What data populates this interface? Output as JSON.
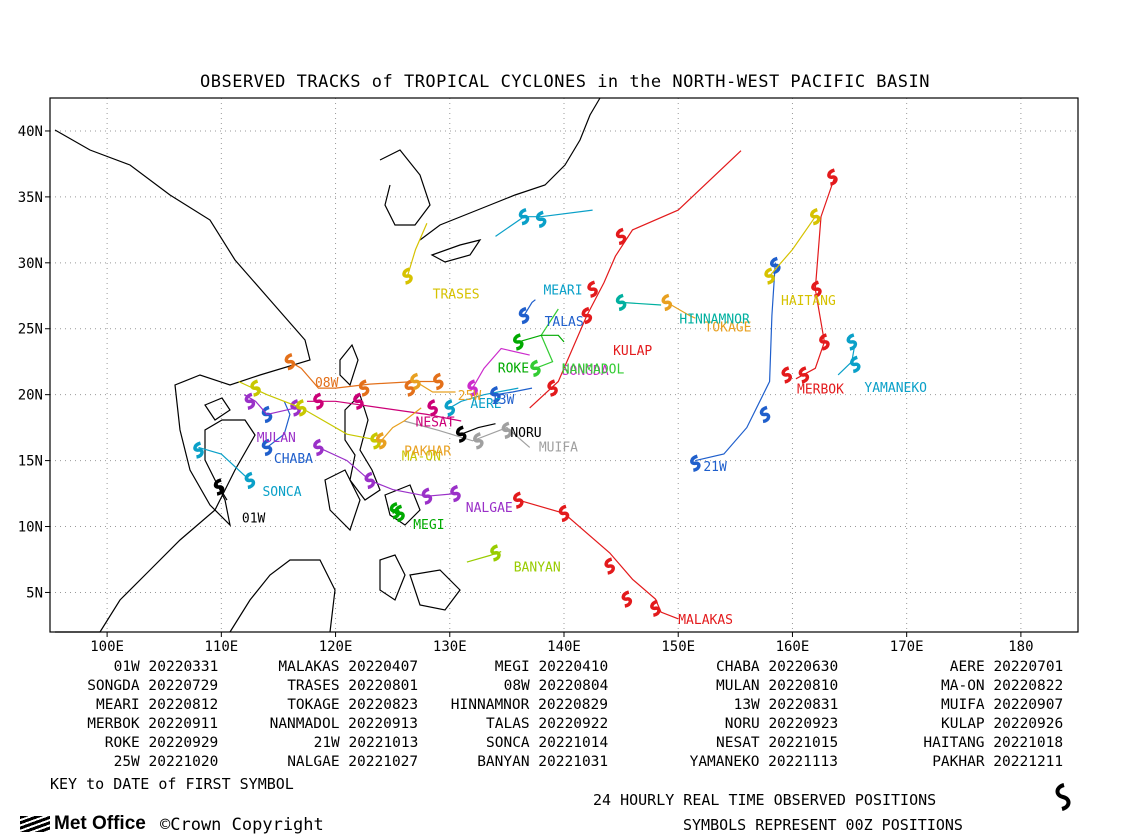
{
  "title": "OBSERVED TRACKS of TROPICAL CYCLONES in the NORTH-WEST PACIFIC BASIN",
  "map": {
    "lon_range": [
      95,
      185
    ],
    "lat_range": [
      2,
      42.5
    ],
    "x_ticks": [
      "100E",
      "110E",
      "120E",
      "130E",
      "140E",
      "150E",
      "160E",
      "170E",
      "180"
    ],
    "x_tick_values": [
      100,
      110,
      120,
      130,
      140,
      150,
      160,
      170,
      180
    ],
    "y_ticks": [
      "5N",
      "10N",
      "15N",
      "20N",
      "25N",
      "30N",
      "35N",
      "40N"
    ],
    "y_tick_values": [
      5,
      10,
      15,
      20,
      25,
      30,
      35,
      40
    ],
    "grid": "dotted"
  },
  "storms": [
    {
      "name": "01W",
      "color": "#000000",
      "track": [
        [
          109.8,
          13
        ],
        [
          110.5,
          12
        ]
      ],
      "label": [
        111.8,
        10.3
      ]
    },
    {
      "name": "MALAKAS",
      "color": "#e31a1c",
      "track": [
        [
          136,
          12
        ],
        [
          140,
          11
        ],
        [
          144,
          8
        ],
        [
          146,
          6
        ],
        [
          148,
          4.5
        ],
        [
          148.5,
          3.5
        ],
        [
          150,
          3
        ]
      ],
      "symbols": [
        [
          136,
          12
        ],
        [
          140,
          11
        ],
        [
          144,
          7
        ],
        [
          145.5,
          4.5
        ],
        [
          148,
          3.8
        ]
      ],
      "label": [
        150,
        2.6
      ]
    },
    {
      "name": "MEGI",
      "color": "#00aa00",
      "track": [
        [
          125.5,
          11.2
        ],
        [
          125,
          11
        ],
        [
          125.5,
          11.5
        ]
      ],
      "symbols": [
        [
          125.2,
          11.2
        ],
        [
          125.6,
          11
        ]
      ],
      "label": [
        126.8,
        9.8
      ]
    },
    {
      "name": "CHABA",
      "color": "#1f5fcc",
      "track": [
        [
          114,
          16
        ],
        [
          115.5,
          17
        ],
        [
          116,
          18.5
        ],
        [
          115.5,
          19.5
        ]
      ],
      "symbols": [
        [
          114,
          16
        ],
        [
          114,
          18.5
        ]
      ],
      "label": [
        114.6,
        14.8
      ]
    },
    {
      "name": "AERE",
      "color": "#0aa0c8",
      "track": [
        [
          130,
          19
        ],
        [
          131,
          19.5
        ],
        [
          133,
          20
        ],
        [
          136,
          20.5
        ]
      ],
      "label": [
        131.8,
        19
      ]
    },
    {
      "name": "SONGDA",
      "color": "#cc2bcc",
      "track": [
        [
          132,
          20.5
        ],
        [
          133,
          22
        ],
        [
          134.5,
          23.5
        ],
        [
          137,
          23
        ]
      ],
      "label": [
        139.8,
        21.5
      ]
    },
    {
      "name": "TRASES",
      "color": "#d6c200",
      "track": [
        [
          126.3,
          29
        ],
        [
          127,
          31
        ],
        [
          128,
          33
        ]
      ],
      "label": [
        128.5,
        27.3
      ]
    },
    {
      "name": "08W",
      "color": "#e3701a",
      "track": [
        [
          116,
          22.5
        ],
        [
          117,
          22
        ],
        [
          118.5,
          20.5
        ],
        [
          120,
          20.5
        ],
        [
          123,
          20.8
        ],
        [
          127,
          21
        ],
        [
          129,
          21
        ]
      ],
      "symbols": [
        [
          116,
          22.5
        ],
        [
          122.5,
          20.5
        ],
        [
          126.5,
          20.5
        ],
        [
          129,
          21
        ]
      ],
      "label": [
        118.2,
        20.6
      ]
    },
    {
      "name": "MULAN",
      "color": "#9a30c8",
      "track": [
        [
          112,
          20
        ],
        [
          113,
          19.5
        ],
        [
          114,
          18.5
        ],
        [
          116.5,
          19
        ]
      ],
      "symbols": [
        [
          112.5,
          19.5
        ],
        [
          116.5,
          19
        ]
      ],
      "label": [
        113.1,
        16.4
      ]
    },
    {
      "name": "MA-ON",
      "color": "#c8c800",
      "track": [
        [
          111.5,
          21
        ],
        [
          114,
          20
        ],
        [
          117,
          19
        ],
        [
          121,
          17
        ],
        [
          124,
          16.5
        ]
      ],
      "symbols": [
        [
          113,
          20.5
        ],
        [
          117,
          19
        ],
        [
          123.5,
          16.5
        ]
      ],
      "label": [
        125.8,
        15
      ]
    },
    {
      "name": "MEARI",
      "color": "#0aa0c8",
      "track": [
        [
          134,
          32
        ],
        [
          136.5,
          33.5
        ],
        [
          138,
          33.5
        ],
        [
          142.5,
          34
        ]
      ],
      "symbols": [
        [
          136.5,
          33.5
        ],
        [
          138,
          33.3
        ]
      ],
      "label": [
        138.2,
        27.6
      ]
    },
    {
      "name": "TOKAGE",
      "color": "#e8a020",
      "track": [
        [
          149,
          27
        ],
        [
          151,
          26
        ],
        [
          151.5,
          25.8
        ]
      ],
      "label": [
        152.3,
        24.8
      ]
    },
    {
      "name": "HINNAMNOR",
      "color": "#00b0a0",
      "track": [
        [
          145,
          27
        ],
        [
          148.5,
          26.8
        ]
      ],
      "label": [
        150.1,
        25.4
      ]
    },
    {
      "name": "13W",
      "color": "#1f5fcc",
      "track": [
        [
          134,
          20
        ],
        [
          135.5,
          20.2
        ],
        [
          137.2,
          20.5
        ]
      ],
      "label": [
        133.6,
        19.3
      ]
    },
    {
      "name": "MUIFA",
      "color": "#a0a0a0",
      "track": [
        [
          126,
          18
        ],
        [
          129,
          17.3
        ],
        [
          132,
          16.5
        ],
        [
          135,
          17.5
        ],
        [
          137,
          16
        ]
      ],
      "symbols": [
        [
          132.5,
          16.5
        ],
        [
          135,
          17.3
        ]
      ],
      "label": [
        137.8,
        15.7
      ]
    },
    {
      "name": "MERBOK",
      "color": "#e31a1c",
      "track": [
        [
          160.3,
          21.2
        ],
        [
          162,
          22
        ],
        [
          162.8,
          24
        ],
        [
          162,
          28
        ],
        [
          162.5,
          33.5
        ],
        [
          163.7,
          36.5
        ]
      ],
      "symbols": [
        [
          159.5,
          21.5
        ],
        [
          161,
          21.5
        ],
        [
          162.8,
          24
        ],
        [
          162.1,
          28
        ],
        [
          163.5,
          36.5
        ]
      ],
      "label": [
        160.4,
        20.1
      ]
    },
    {
      "name": "NANMADOL",
      "color": "#33cc33",
      "track": [
        [
          137.5,
          22
        ],
        [
          139,
          22.5
        ],
        [
          138,
          24.5
        ],
        [
          139.5,
          26.5
        ]
      ],
      "label": [
        139.8,
        21.6
      ]
    },
    {
      "name": "TALAS",
      "color": "#1f5fcc",
      "track": [
        [
          136.5,
          26
        ],
        [
          137.2,
          27
        ],
        [
          137.5,
          27.2
        ]
      ],
      "label": [
        138.3,
        25.2
      ]
    },
    {
      "name": "NORU",
      "color": "#000000",
      "track": [
        [
          131,
          17
        ],
        [
          132.5,
          17.5
        ],
        [
          134,
          17.8
        ]
      ],
      "label": [
        135.3,
        16.8
      ]
    },
    {
      "name": "KULAP",
      "color": "#e31a1c",
      "track": [
        [
          137,
          19
        ],
        [
          139.5,
          21
        ],
        [
          142,
          26
        ],
        [
          143.5,
          28.5
        ],
        [
          144.5,
          30.5
        ],
        [
          146,
          32.5
        ],
        [
          150,
          34
        ],
        [
          155.5,
          38.5
        ]
      ],
      "symbols": [
        [
          139,
          20.5
        ],
        [
          142,
          26
        ],
        [
          142.5,
          28
        ],
        [
          145,
          32
        ]
      ],
      "label": [
        144.3,
        23
      ]
    },
    {
      "name": "ROKE",
      "color": "#00aa00",
      "track": [
        [
          136,
          24
        ],
        [
          138,
          24.5
        ],
        [
          139.5,
          24.5
        ],
        [
          140,
          24
        ]
      ],
      "label": [
        134.2,
        21.7
      ]
    },
    {
      "name": "21W",
      "color": "#1f5fcc",
      "track": [
        [
          151.5,
          15
        ],
        [
          154,
          15.5
        ],
        [
          156,
          17.5
        ],
        [
          158,
          21
        ],
        [
          158.2,
          26
        ],
        [
          158.5,
          30
        ]
      ],
      "symbols": [
        [
          151.5,
          14.8
        ],
        [
          157.6,
          18.5
        ],
        [
          158.5,
          29.8
        ]
      ],
      "label": [
        152.2,
        14.2
      ]
    },
    {
      "name": "SONCA",
      "color": "#0aa0c8",
      "track": [
        [
          108,
          16
        ],
        [
          110,
          15.5
        ],
        [
          112.5,
          13.5
        ]
      ],
      "symbols": [
        [
          108,
          15.8
        ],
        [
          112.5,
          13.5
        ]
      ],
      "label": [
        113.6,
        12.3
      ]
    },
    {
      "name": "NESAT",
      "color": "#cc0077",
      "track": [
        [
          117.5,
          19.5
        ],
        [
          120,
          19.5
        ],
        [
          124,
          19
        ],
        [
          128,
          18.5
        ],
        [
          131,
          18
        ]
      ],
      "symbols": [
        [
          118.5,
          19.5
        ],
        [
          122,
          19.5
        ],
        [
          128.5,
          19
        ]
      ],
      "label": [
        127,
        17.6
      ]
    },
    {
      "name": "HAITANG",
      "color": "#d6c200",
      "track": [
        [
          158,
          29
        ],
        [
          160,
          31
        ],
        [
          162,
          33.5
        ]
      ],
      "symbols": [
        [
          158,
          29
        ],
        [
          162,
          33.5
        ]
      ],
      "label": [
        159,
        26.8
      ]
    },
    {
      "name": "25W",
      "color": "#e8a020",
      "track": [
        [
          127,
          21
        ],
        [
          128.5,
          20.2
        ],
        [
          130.5,
          20.2
        ]
      ],
      "label": [
        130.7,
        19.6
      ]
    },
    {
      "name": "NALGAE",
      "color": "#9a30c8",
      "track": [
        [
          118.5,
          16
        ],
        [
          121,
          15
        ],
        [
          123,
          13.5
        ],
        [
          125,
          12.8
        ],
        [
          128,
          12.3
        ],
        [
          130.5,
          12.5
        ]
      ],
      "symbols": [
        [
          118.5,
          16
        ],
        [
          123,
          13.5
        ],
        [
          128,
          12.3
        ],
        [
          130.5,
          12.5
        ]
      ],
      "label": [
        131.4,
        11.1
      ]
    },
    {
      "name": "BANYAN",
      "color": "#99cc00",
      "track": [
        [
          131.5,
          7.3
        ],
        [
          133.5,
          7.8
        ],
        [
          134.5,
          8.1
        ]
      ],
      "symbols": [
        [
          134,
          8
        ]
      ],
      "label": [
        135.6,
        6.6
      ]
    },
    {
      "name": "YAMANEKO",
      "color": "#0aa0c8",
      "track": [
        [
          164,
          21.5
        ],
        [
          165.2,
          22.5
        ],
        [
          165.5,
          24
        ]
      ],
      "symbols": [
        [
          165.5,
          22.3
        ],
        [
          165.2,
          24
        ]
      ],
      "label": [
        166.3,
        20.2
      ]
    },
    {
      "name": "PAKHAR",
      "color": "#e8a020",
      "track": [
        [
          124,
          16.5
        ],
        [
          125,
          17.5
        ],
        [
          126,
          18
        ],
        [
          127.5,
          19
        ]
      ],
      "label": [
        126,
        15.4
      ]
    }
  ],
  "legend": [
    [
      "01W",
      "20220331"
    ],
    [
      "MALAKAS",
      "20220407"
    ],
    [
      "MEGI",
      "20220410"
    ],
    [
      "CHABA",
      "20220630"
    ],
    [
      "AERE",
      "20220701"
    ],
    [
      "SONGDA",
      "20220729"
    ],
    [
      "TRASES",
      "20220801"
    ],
    [
      "08W",
      "20220804"
    ],
    [
      "MULAN",
      "20220810"
    ],
    [
      "MA-ON",
      "20220822"
    ],
    [
      "MEARI",
      "20220812"
    ],
    [
      "TOKAGE",
      "20220823"
    ],
    [
      "HINNAMNOR",
      "20220829"
    ],
    [
      "13W",
      "20220831"
    ],
    [
      "MUIFA",
      "20220907"
    ],
    [
      "MERBOK",
      "20220911"
    ],
    [
      "NANMADOL",
      "20220913"
    ],
    [
      "TALAS",
      "20220922"
    ],
    [
      "NORU",
      "20220923"
    ],
    [
      "KULAP",
      "20220926"
    ],
    [
      "ROKE",
      "20220929"
    ],
    [
      "21W",
      "20221013"
    ],
    [
      "SONCA",
      "20221014"
    ],
    [
      "NESAT",
      "20221015"
    ],
    [
      "HAITANG",
      "20221018"
    ],
    [
      "25W",
      "20221020"
    ],
    [
      "NALGAE",
      "20221027"
    ],
    [
      "BANYAN",
      "20221031"
    ],
    [
      "YAMANEKO",
      "20221113"
    ],
    [
      "PAKHAR",
      "20221211"
    ]
  ],
  "key_text": "KEY to DATE of FIRST SYMBOL",
  "note1": "24 HOURLY REAL TIME OBSERVED POSITIONS",
  "note2": "SYMBOLS REPRESENT 00Z POSITIONS",
  "logo_text": "Met Office",
  "copyright": "©Crown Copyright"
}
